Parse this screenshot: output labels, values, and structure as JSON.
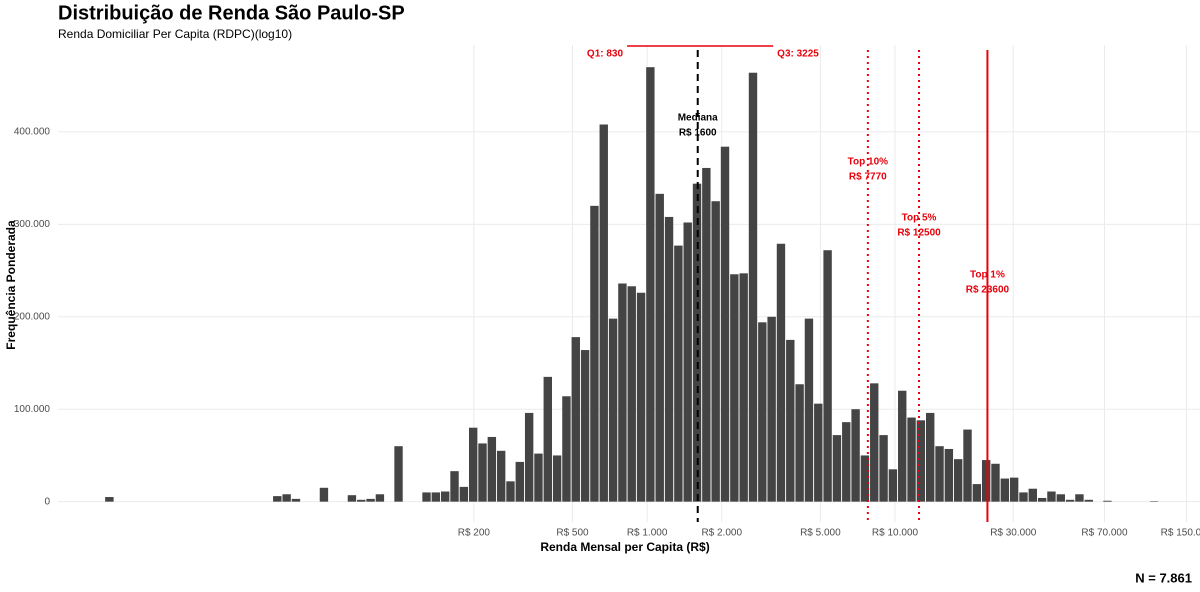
{
  "chart_data": {
    "type": "histogram",
    "title": "Distribuição de Renda São Paulo-SP",
    "subtitle": "Renda Domiciliar Per Capita (RDPC)(log10)",
    "x_label": "Renda Mensal per Capita (R$)",
    "y_label": "Frequência Ponderada",
    "n_label": "N = 7.861",
    "color": "#444444",
    "grid": true,
    "xscale": "log",
    "xlim": [
      4.2,
      170000
    ],
    "ylim": [
      -22000,
      494000
    ],
    "xticks": [
      {
        "value": 200,
        "label": "R$ 200"
      },
      {
        "value": 500,
        "label": "R$ 500"
      },
      {
        "value": 1000,
        "label": "R$ 1.000"
      },
      {
        "value": 2000,
        "label": "R$ 2.000"
      },
      {
        "value": 5000,
        "label": "R$ 5.000"
      },
      {
        "value": 10000,
        "label": "R$ 10.000"
      },
      {
        "value": 30000,
        "label": "R$ 30.000"
      },
      {
        "value": 70000,
        "label": "R$ 70.000"
      },
      {
        "value": 150000,
        "label": "R$ 150.000"
      }
    ],
    "yticks": [
      0,
      {
        "value": 100000,
        "label": "100.000"
      },
      {
        "value": 200000,
        "label": "200.000"
      },
      {
        "value": 300000,
        "label": "300.000"
      },
      {
        "value": 400000,
        "label": "400.000"
      }
    ],
    "bins": [
      5,
      5.45,
      5.95,
      6.48,
      7.07,
      7.71,
      8.41,
      9.17,
      10,
      10.9,
      11.89,
      12.97,
      14.14,
      15.42,
      16.82,
      18.34,
      20,
      21.81,
      23.78,
      25.94,
      28.28,
      30.84,
      33.64,
      36.68,
      40,
      43.62,
      47.57,
      51.87,
      56.57,
      61.69,
      67.27,
      73.36,
      80,
      87.24,
      95.14,
      103.7,
      113.1,
      123.4,
      134.5,
      146.7,
      160,
      174.5,
      190.3,
      207.5,
      226.3,
      246.8,
      269.1,
      293.4,
      320,
      349,
      380.5,
      415,
      452.5,
      493.5,
      538.2,
      586.9,
      640,
      697.9,
      761.1,
      830,
      905.1,
      987,
      1076,
      1174,
      1280,
      1396,
      1522,
      1660,
      1810,
      1974,
      2153,
      2348,
      2560,
      2792,
      3044,
      3320,
      3620,
      3948,
      4305,
      4695,
      5120,
      5583,
      6089,
      6640,
      7241,
      7896,
      8611,
      9390,
      10240,
      11167,
      12177,
      13279,
      14482,
      15792,
      17222,
      18780,
      20480,
      22333,
      24355,
      26558,
      28963,
      31584,
      34443,
      37560,
      40960,
      44667,
      48710,
      53117,
      57926,
      63169,
      68887,
      75121,
      81920,
      89334,
      97419,
      106233,
      115852,
      126337,
      137773,
      150242,
      163840
    ],
    "values": [
      0,
      0,
      0,
      5000,
      0,
      0,
      0,
      0,
      0,
      0,
      0,
      0,
      0,
      0,
      0,
      0,
      0,
      0,
      0,
      0,
      0,
      6000,
      8000,
      3000,
      0,
      0,
      15000,
      0,
      0,
      7000,
      2000,
      3000,
      8000,
      0,
      60000,
      0,
      0,
      10000,
      10000,
      11000,
      33000,
      16000,
      80000,
      63000,
      70000,
      55000,
      22000,
      43000,
      96000,
      52000,
      135000,
      50000,
      114000,
      178000,
      164000,
      320000,
      408000,
      198000,
      236000,
      233000,
      226000,
      470000,
      333000,
      308000,
      277000,
      302000,
      344000,
      361000,
      325000,
      384000,
      246000,
      247000,
      464000,
      194000,
      200000,
      279000,
      175000,
      127000,
      198000,
      106000,
      272000,
      72000,
      86000,
      100000,
      50000,
      128000,
      72000,
      35000,
      120000,
      91000,
      88000,
      96000,
      60000,
      57000,
      46000,
      78000,
      19000,
      45000,
      41000,
      25000,
      26000,
      10000,
      14000,
      4000,
      11000,
      8000,
      2000,
      8000,
      2000,
      0,
      1000,
      0,
      0,
      0,
      0,
      500,
      0,
      0,
      0,
      0
    ],
    "quartiles": {
      "color": "#e8000b",
      "q1": {
        "value": 830,
        "label": "Q1: 830"
      },
      "q3": {
        "value": 3225,
        "label": "Q3: 3225"
      }
    },
    "reference_lines": [
      {
        "value": 1600,
        "label": [
          "Mediana",
          "R$ 1600"
        ],
        "color": "#000000",
        "style": "dashed"
      },
      {
        "value": 7770,
        "label": [
          "Top 10%",
          "R$ 7770"
        ],
        "color": "#e8000b",
        "style": "dotted"
      },
      {
        "value": 12500,
        "label": [
          "Top 5%",
          "R$ 12500"
        ],
        "color": "#e8000b",
        "style": "dotted"
      },
      {
        "value": 23600,
        "label": [
          "Top 1%",
          "R$ 23600"
        ],
        "color": "#e8000b",
        "style": "solid"
      }
    ]
  }
}
